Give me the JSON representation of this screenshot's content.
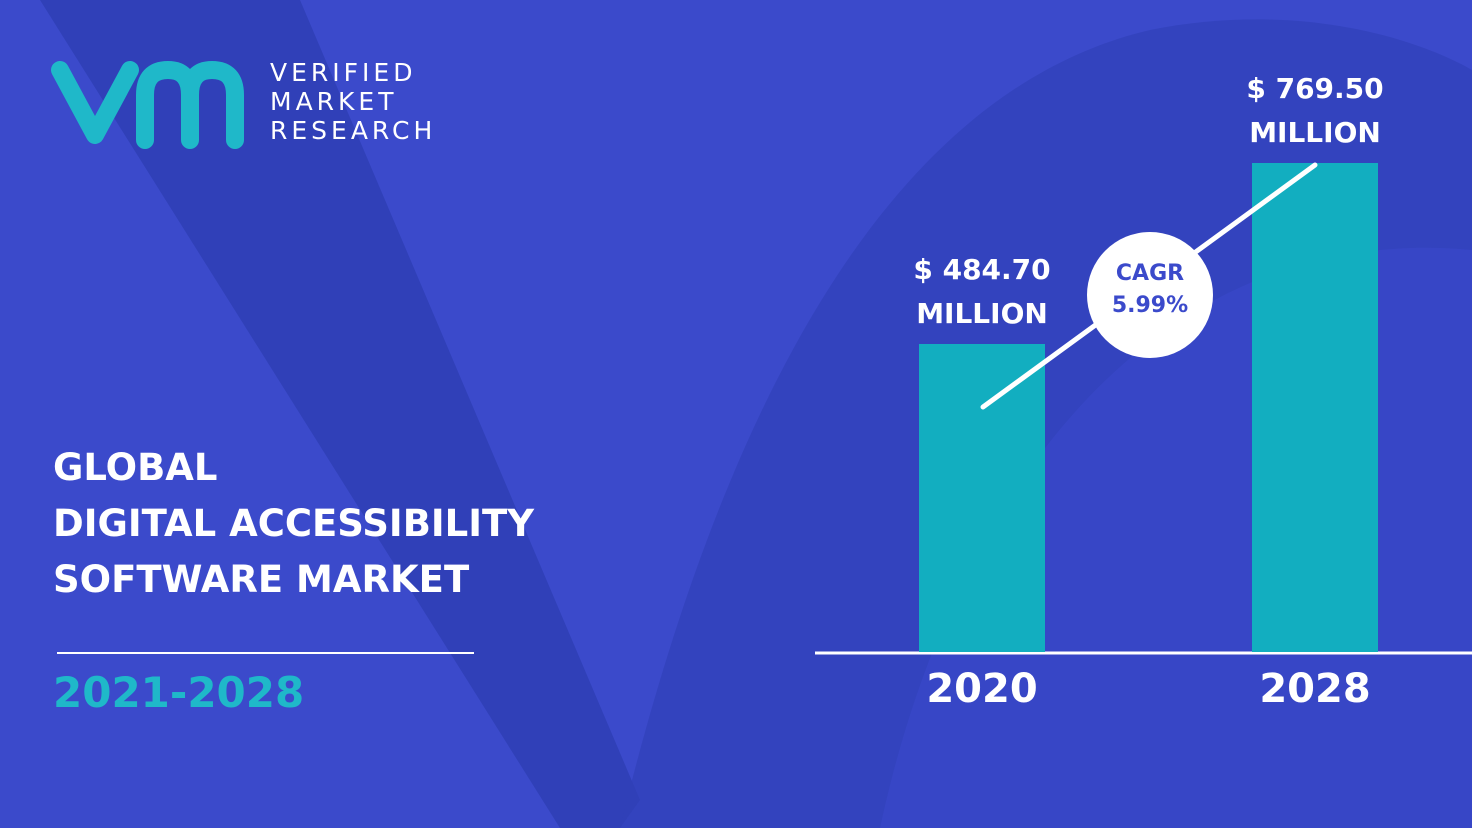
{
  "logo": {
    "lines": [
      "VERIFIED",
      "MARKET",
      "RESEARCH"
    ]
  },
  "heading": {
    "lines": [
      "GLOBAL",
      "DIGITAL ACCESSIBILITY",
      "SOFTWARE MARKET"
    ],
    "period": "2021-2028"
  },
  "chart_data": {
    "type": "bar",
    "categories": [
      "2020",
      "2028"
    ],
    "values": [
      484.7,
      769.5
    ],
    "value_labels": [
      "$ 484.70 MILLION",
      "$ 769.50 MILLION"
    ],
    "color": "#12aec0",
    "annotation": {
      "title": "CAGR",
      "value": "5.99%"
    }
  }
}
